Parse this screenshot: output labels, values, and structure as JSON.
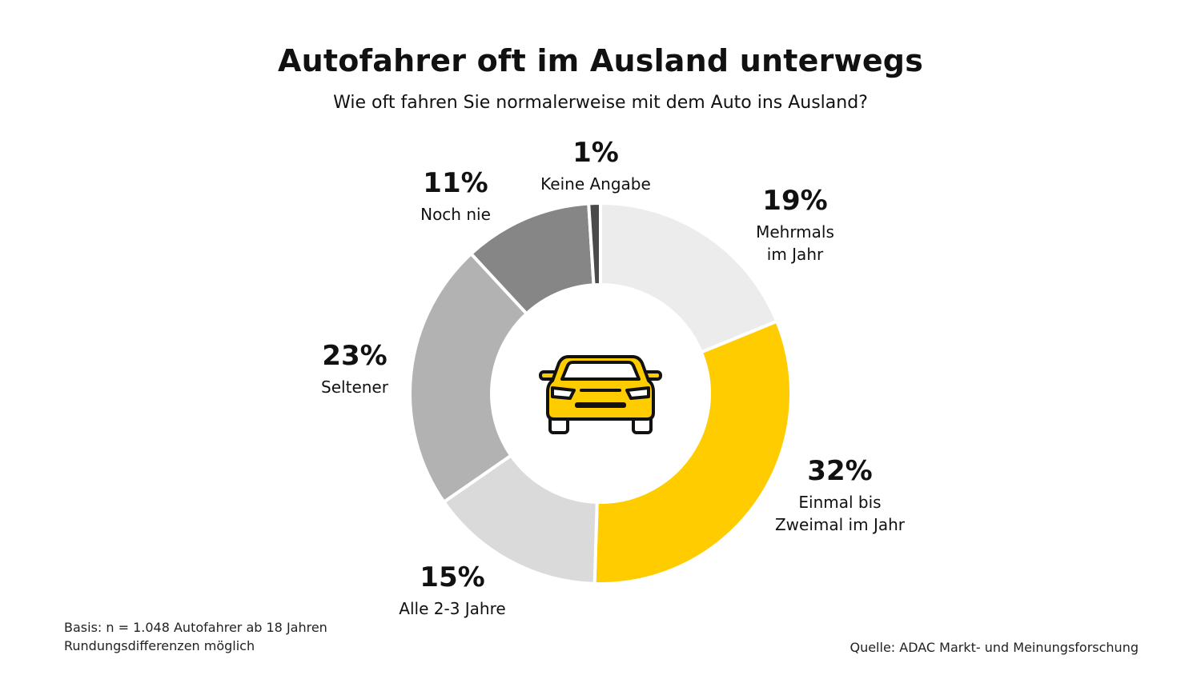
{
  "title": "Autofahrer oft im Ausland unterwegs",
  "subtitle": "Wie oft fahren Sie normalerweise mit dem Auto ins Ausland?",
  "chart_data": {
    "type": "pie",
    "donut": true,
    "slices": [
      {
        "label": "Mehrmals im Jahr",
        "label_lines": [
          "Mehrmals",
          "im Jahr"
        ],
        "value": 19,
        "value_label": "19%",
        "color": "#ececec"
      },
      {
        "label": "Einmal bis Zweimal im Jahr",
        "label_lines": [
          "Einmal bis",
          "Zweimal im Jahr"
        ],
        "value": 32,
        "value_label": "32%",
        "color": "#ffcc00"
      },
      {
        "label": "Alle 2-3 Jahre",
        "label_lines": [
          "Alle 2-3 Jahre"
        ],
        "value": 15,
        "value_label": "15%",
        "color": "#dadada"
      },
      {
        "label": "Seltener",
        "label_lines": [
          "Seltener"
        ],
        "value": 23,
        "value_label": "23%",
        "color": "#b2b2b2"
      },
      {
        "label": "Noch nie",
        "label_lines": [
          "Noch nie"
        ],
        "value": 11,
        "value_label": "11%",
        "color": "#868686"
      },
      {
        "label": "Keine Angabe",
        "label_lines": [
          "Keine Angabe"
        ],
        "value": 1,
        "value_label": "1%",
        "color": "#4a4a4a"
      }
    ],
    "center_icon": "car-icon"
  },
  "footnote_lines": [
    "Basis: n = 1.048 Autofahrer ab 18 Jahren",
    "Rundungsdifferenzen möglich"
  ],
  "source": "Quelle: ADAC Markt- und Meinungsforschung"
}
